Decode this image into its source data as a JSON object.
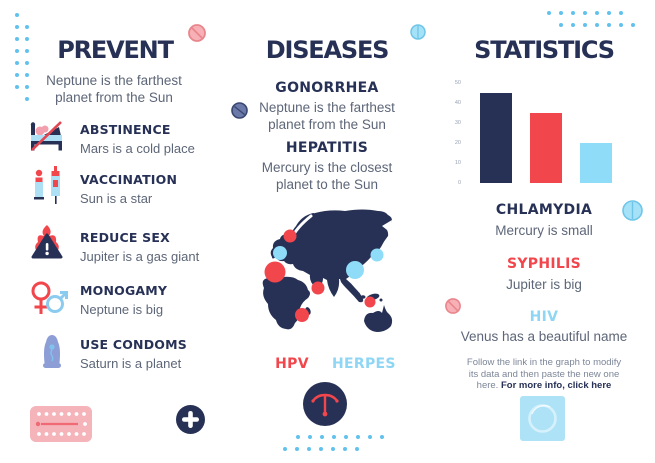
{
  "prevent": {
    "title": "PREVENT",
    "subtitle": "Neptune is the farthest planet from the Sun",
    "items": [
      {
        "icon": "no-bed-icon",
        "title": "ABSTINENCE",
        "text": "Mars is a cold place"
      },
      {
        "icon": "syringes-icon",
        "title": "VACCINATION",
        "text": "Sun is a star"
      },
      {
        "icon": "fire-warning-icon",
        "title": "REDUCE SEX",
        "text": "Jupiter is a gas giant"
      },
      {
        "icon": "gender-symbols-icon",
        "title": "MONOGAMY",
        "text": "Neptune is big"
      },
      {
        "icon": "condom-icon",
        "title": "USE CONDOMS",
        "text": "Saturn is a planet"
      }
    ]
  },
  "diseases": {
    "title": "DISEASES",
    "entries": [
      {
        "name": "GONORRHEA",
        "text": "Neptune is the farthest planet from the Sun"
      },
      {
        "name": "HEPATITIS",
        "text": "Mercury is the closest planet to the Sun"
      }
    ],
    "map_labels": [
      {
        "label": "HPV",
        "color": "#f2464d"
      },
      {
        "label": "HERPES",
        "color": "#8ed6f4"
      }
    ]
  },
  "statistics": {
    "title": "STATISTICS",
    "entries": [
      {
        "name": "CHLAMYDIA",
        "text": "Mercury is small",
        "color": "#273156"
      },
      {
        "name": "SYPHILIS",
        "text": "Jupiter is big",
        "color": "#f2464d"
      },
      {
        "name": "HIV",
        "text": "Venus has a beautiful name",
        "color": "#8ed6f4"
      }
    ],
    "note": {
      "text": "Follow the link in the graph to modify its data and then paste the new one here. ",
      "link": "For more info, click here"
    }
  },
  "chart_data": {
    "type": "bar",
    "categories": [
      "Chlamydia",
      "Syphilis",
      "HIV"
    ],
    "values": [
      45,
      35,
      20
    ],
    "colors": [
      "#273156",
      "#f2464d",
      "#8edcf8"
    ],
    "ylim": [
      0,
      50
    ],
    "yticks": [
      50,
      40,
      30,
      20,
      10,
      0
    ],
    "grid": false,
    "legend": false
  },
  "colors": {
    "navy": "#273156",
    "red": "#f2464d",
    "light_blue": "#8edcf8",
    "sky_dot": "#62c2ec",
    "pink": "#f5b3ba"
  }
}
